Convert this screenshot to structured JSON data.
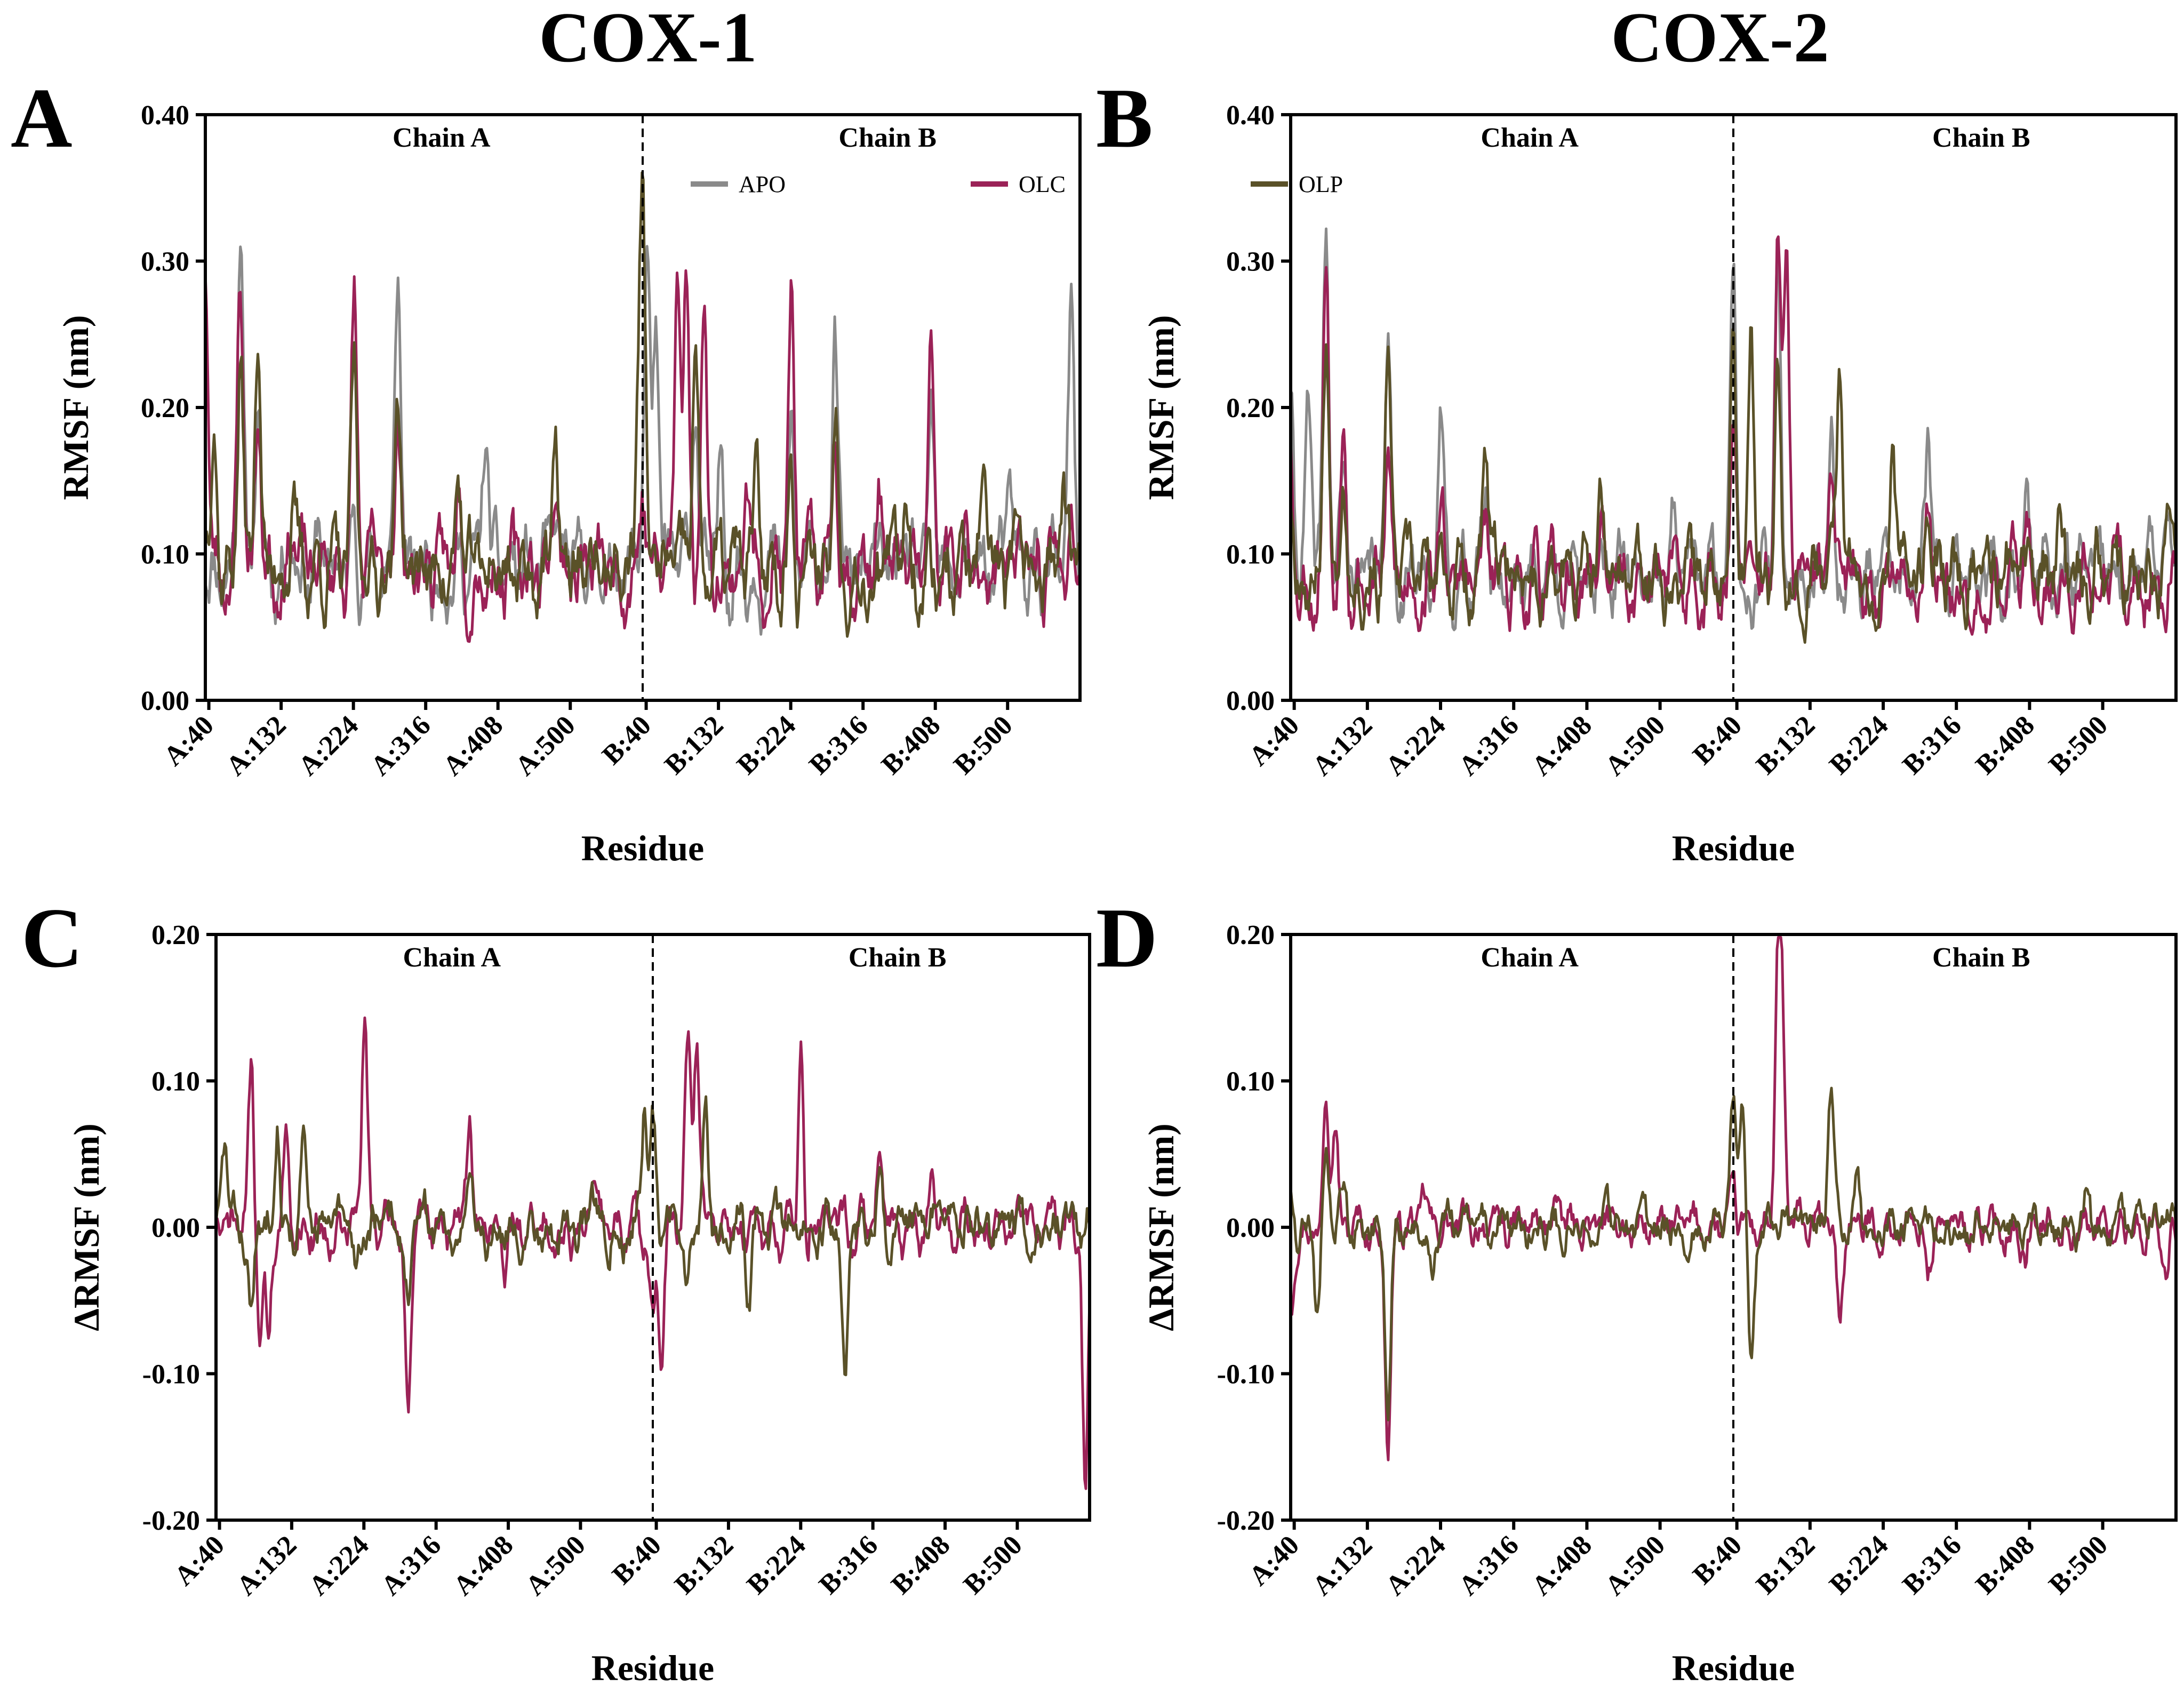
{
  "figure": {
    "col_titles": [
      "COX-1",
      "COX-2"
    ],
    "colors": {
      "APO": "#8a8a8a",
      "OLC": "#9b2257",
      "OLP": "#5a5128"
    }
  },
  "chart_data": [
    {
      "id": "A",
      "type": "line",
      "title": "",
      "column": "COX-1",
      "ylabel": "RMSF (nm)",
      "xlabel": "Residue",
      "ylim": [
        0,
        0.4
      ],
      "yticks": [
        "0.00",
        "0.10",
        "0.20",
        "0.30",
        "0.40"
      ],
      "xticks": [
        "A:40",
        "A:132",
        "A:224",
        "A:316",
        "A:408",
        "A:500",
        "B:40",
        "B:132",
        "B:224",
        "B:316",
        "B:408",
        "B:500"
      ],
      "chain_labels": [
        "Chain A",
        "Chain B"
      ],
      "legend": {
        "entries": [
          "APO",
          "OLC",
          "OLP"
        ],
        "position": "top-right"
      },
      "series": [
        {
          "name": "APO",
          "color": "#8a8a8a",
          "seed": 11,
          "baseline": 0.09,
          "amp": 0.02,
          "peaks": [
            [
              0.0,
              0.1
            ],
            [
              0.04,
              0.345
            ],
            [
              0.06,
              0.2
            ],
            [
              0.1,
              0.12
            ],
            [
              0.13,
              0.11
            ],
            [
              0.17,
              0.125
            ],
            [
              0.22,
              0.3
            ],
            [
              0.32,
              0.185
            ],
            [
              0.4,
              0.125
            ],
            [
              0.5,
              0.12
            ],
            [
              0.505,
              0.3
            ],
            [
              0.515,
              0.255
            ],
            [
              0.56,
              0.215
            ],
            [
              0.59,
              0.16
            ],
            [
              0.67,
              0.18
            ],
            [
              0.72,
              0.245
            ],
            [
              0.83,
              0.18
            ],
            [
              0.92,
              0.14
            ],
            [
              0.99,
              0.258
            ]
          ]
        },
        {
          "name": "OLC",
          "color": "#9b2257",
          "seed": 23,
          "baseline": 0.09,
          "amp": 0.02,
          "peaks": [
            [
              0.0,
              0.31
            ],
            [
              0.04,
              0.3
            ],
            [
              0.06,
              0.2
            ],
            [
              0.1,
              0.13
            ],
            [
              0.17,
              0.27
            ],
            [
              0.22,
              0.2
            ],
            [
              0.29,
              0.15
            ],
            [
              0.4,
              0.155
            ],
            [
              0.5,
              0.15
            ],
            [
              0.54,
              0.295
            ],
            [
              0.55,
              0.3
            ],
            [
              0.57,
              0.28
            ],
            [
              0.62,
              0.15
            ],
            [
              0.67,
              0.268
            ],
            [
              0.72,
              0.2
            ],
            [
              0.77,
              0.14
            ],
            [
              0.83,
              0.22
            ],
            [
              0.92,
              0.13
            ],
            [
              0.99,
              0.12
            ]
          ]
        },
        {
          "name": "OLP",
          "color": "#5a5128",
          "seed": 37,
          "baseline": 0.09,
          "amp": 0.02,
          "peaks": [
            [
              0.0,
              0.12
            ],
            [
              0.01,
              0.195
            ],
            [
              0.04,
              0.235
            ],
            [
              0.06,
              0.26
            ],
            [
              0.1,
              0.13
            ],
            [
              0.17,
              0.22
            ],
            [
              0.22,
              0.215
            ],
            [
              0.29,
              0.14
            ],
            [
              0.4,
              0.165
            ],
            [
              0.495,
              0.18
            ],
            [
              0.5,
              0.33
            ],
            [
              0.56,
              0.24
            ],
            [
              0.63,
              0.15
            ],
            [
              0.67,
              0.16
            ],
            [
              0.72,
              0.2
            ],
            [
              0.8,
              0.15
            ],
            [
              0.89,
              0.12
            ],
            [
              0.98,
              0.14
            ]
          ]
        }
      ]
    },
    {
      "id": "B",
      "type": "line",
      "title": "",
      "column": "COX-2",
      "ylabel": "RMSF (nm)",
      "xlabel": "Residue",
      "ylim": [
        0,
        0.4
      ],
      "yticks": [
        "0.00",
        "0.10",
        "0.20",
        "0.30",
        "0.40"
      ],
      "xticks": [
        "A:40",
        "A:132",
        "A:224",
        "A:316",
        "A:408",
        "A:500",
        "B:40",
        "B:132",
        "B:224",
        "B:316",
        "B:408",
        "B:500"
      ],
      "chain_labels": [
        "Chain A",
        "Chain B"
      ],
      "series": [
        {
          "name": "APO",
          "color": "#8a8a8a",
          "seed": 41,
          "baseline": 0.085,
          "amp": 0.018,
          "peaks": [
            [
              0.0,
              0.22
            ],
            [
              0.02,
              0.2
            ],
            [
              0.04,
              0.325
            ],
            [
              0.06,
              0.16
            ],
            [
              0.11,
              0.265
            ],
            [
              0.17,
              0.185
            ],
            [
              0.22,
              0.14
            ],
            [
              0.35,
              0.12
            ],
            [
              0.43,
              0.14
            ],
            [
              0.5,
              0.305
            ],
            [
              0.55,
              0.3
            ],
            [
              0.61,
              0.18
            ],
            [
              0.72,
              0.17
            ],
            [
              0.83,
              0.13
            ],
            [
              0.93,
              0.11
            ],
            [
              0.99,
              0.12
            ]
          ]
        },
        {
          "name": "OLC",
          "color": "#9b2257",
          "seed": 53,
          "baseline": 0.08,
          "amp": 0.018,
          "peaks": [
            [
              0.0,
              0.18
            ],
            [
              0.04,
              0.3
            ],
            [
              0.06,
              0.205
            ],
            [
              0.11,
              0.16
            ],
            [
              0.17,
              0.14
            ],
            [
              0.22,
              0.12
            ],
            [
              0.35,
              0.13
            ],
            [
              0.43,
              0.12
            ],
            [
              0.5,
              0.2
            ],
            [
              0.55,
              0.322
            ],
            [
              0.56,
              0.3
            ],
            [
              0.61,
              0.15
            ],
            [
              0.72,
              0.14
            ],
            [
              0.83,
              0.11
            ],
            [
              0.93,
              0.1
            ]
          ]
        },
        {
          "name": "OLP",
          "color": "#5a5128",
          "seed": 67,
          "baseline": 0.085,
          "amp": 0.018,
          "peaks": [
            [
              0.0,
              0.15
            ],
            [
              0.04,
              0.26
            ],
            [
              0.06,
              0.17
            ],
            [
              0.11,
              0.23
            ],
            [
              0.22,
              0.17
            ],
            [
              0.35,
              0.12
            ],
            [
              0.5,
              0.275
            ],
            [
              0.52,
              0.27
            ],
            [
              0.55,
              0.25
            ],
            [
              0.62,
              0.228
            ],
            [
              0.68,
              0.215
            ],
            [
              0.72,
              0.14
            ],
            [
              0.87,
              0.12
            ],
            [
              0.91,
              0.12
            ],
            [
              0.99,
              0.1
            ]
          ]
        }
      ]
    },
    {
      "id": "C",
      "type": "line",
      "title": "",
      "column": "COX-1",
      "ylabel": "ΔRMSF (nm)",
      "xlabel": "Residue",
      "ylim": [
        -0.2,
        0.2
      ],
      "yticks": [
        "-0.20",
        "-0.10",
        "0.00",
        "0.10",
        "0.20"
      ],
      "xticks": [
        "A:40",
        "A:132",
        "A:224",
        "A:316",
        "A:408",
        "A:500",
        "B:40",
        "B:132",
        "B:224",
        "B:316",
        "B:408",
        "B:500"
      ],
      "chain_labels": [
        "Chain A",
        "Chain B"
      ],
      "series": [
        {
          "name": "OLC",
          "color": "#9b2257",
          "seed": 71,
          "baseline": 0.0,
          "amp": 0.012,
          "peaks": [
            [
              0.04,
              0.104
            ],
            [
              0.05,
              -0.062
            ],
            [
              0.06,
              -0.076
            ],
            [
              0.08,
              0.05
            ],
            [
              0.17,
              0.145
            ],
            [
              0.22,
              -0.127
            ],
            [
              0.29,
              0.077
            ],
            [
              0.33,
              -0.03
            ],
            [
              0.43,
              0.03
            ],
            [
              0.5,
              -0.06
            ],
            [
              0.51,
              -0.09
            ],
            [
              0.54,
              0.12
            ],
            [
              0.55,
              0.125
            ],
            [
              0.67,
              0.144
            ],
            [
              0.675,
              -0.065
            ],
            [
              0.76,
              0.045
            ],
            [
              0.82,
              0.04
            ],
            [
              0.995,
              -0.185
            ]
          ]
        },
        {
          "name": "OLP",
          "color": "#5a5128",
          "seed": 83,
          "baseline": 0.0,
          "amp": 0.012,
          "peaks": [
            [
              0.01,
              0.06
            ],
            [
              0.04,
              -0.065
            ],
            [
              0.07,
              0.09
            ],
            [
              0.1,
              0.05
            ],
            [
              0.16,
              -0.03
            ],
            [
              0.22,
              -0.05
            ],
            [
              0.29,
              0.05
            ],
            [
              0.43,
              0.03
            ],
            [
              0.49,
              0.088
            ],
            [
              0.5,
              0.07
            ],
            [
              0.54,
              -0.053
            ],
            [
              0.56,
              0.09
            ],
            [
              0.61,
              -0.04
            ],
            [
              0.72,
              -0.097
            ],
            [
              0.76,
              0.035
            ],
            [
              0.87,
              0.02
            ],
            [
              0.97,
              0.02
            ]
          ]
        }
      ]
    },
    {
      "id": "D",
      "type": "line",
      "title": "",
      "column": "COX-2",
      "ylabel": "ΔRMSF (nm)",
      "xlabel": "Residue",
      "ylim": [
        -0.2,
        0.2
      ],
      "yticks": [
        "-0.20",
        "-0.10",
        "0.00",
        "0.10",
        "0.20"
      ],
      "xticks": [
        "A:40",
        "A:132",
        "A:224",
        "A:316",
        "A:408",
        "A:500",
        "B:40",
        "B:132",
        "B:224",
        "B:316",
        "B:408",
        "B:500"
      ],
      "chain_labels": [
        "Chain A",
        "Chain B"
      ],
      "series": [
        {
          "name": "OLC",
          "color": "#9b2257",
          "seed": 97,
          "baseline": 0.0,
          "amp": 0.01,
          "peaks": [
            [
              0.0,
              -0.055
            ],
            [
              0.04,
              0.105
            ],
            [
              0.05,
              0.08
            ],
            [
              0.11,
              -0.15
            ],
            [
              0.15,
              0.02
            ],
            [
              0.3,
              0.02
            ],
            [
              0.5,
              0.02
            ],
            [
              0.55,
              0.155
            ],
            [
              0.555,
              0.13
            ],
            [
              0.62,
              -0.065
            ],
            [
              0.72,
              -0.03
            ],
            [
              0.83,
              -0.025
            ],
            [
              0.99,
              -0.035
            ]
          ]
        },
        {
          "name": "OLP",
          "color": "#5a5128",
          "seed": 109,
          "baseline": 0.0,
          "amp": 0.01,
          "peaks": [
            [
              0.0,
              0.025
            ],
            [
              0.03,
              -0.067
            ],
            [
              0.04,
              0.05
            ],
            [
              0.06,
              0.03
            ],
            [
              0.11,
              -0.13
            ],
            [
              0.16,
              -0.035
            ],
            [
              0.5,
              0.085
            ],
            [
              0.51,
              0.08
            ],
            [
              0.52,
              -0.093
            ],
            [
              0.61,
              0.098
            ],
            [
              0.64,
              0.03
            ],
            [
              0.9,
              0.028
            ],
            [
              0.99,
              0.018
            ]
          ]
        }
      ]
    }
  ]
}
